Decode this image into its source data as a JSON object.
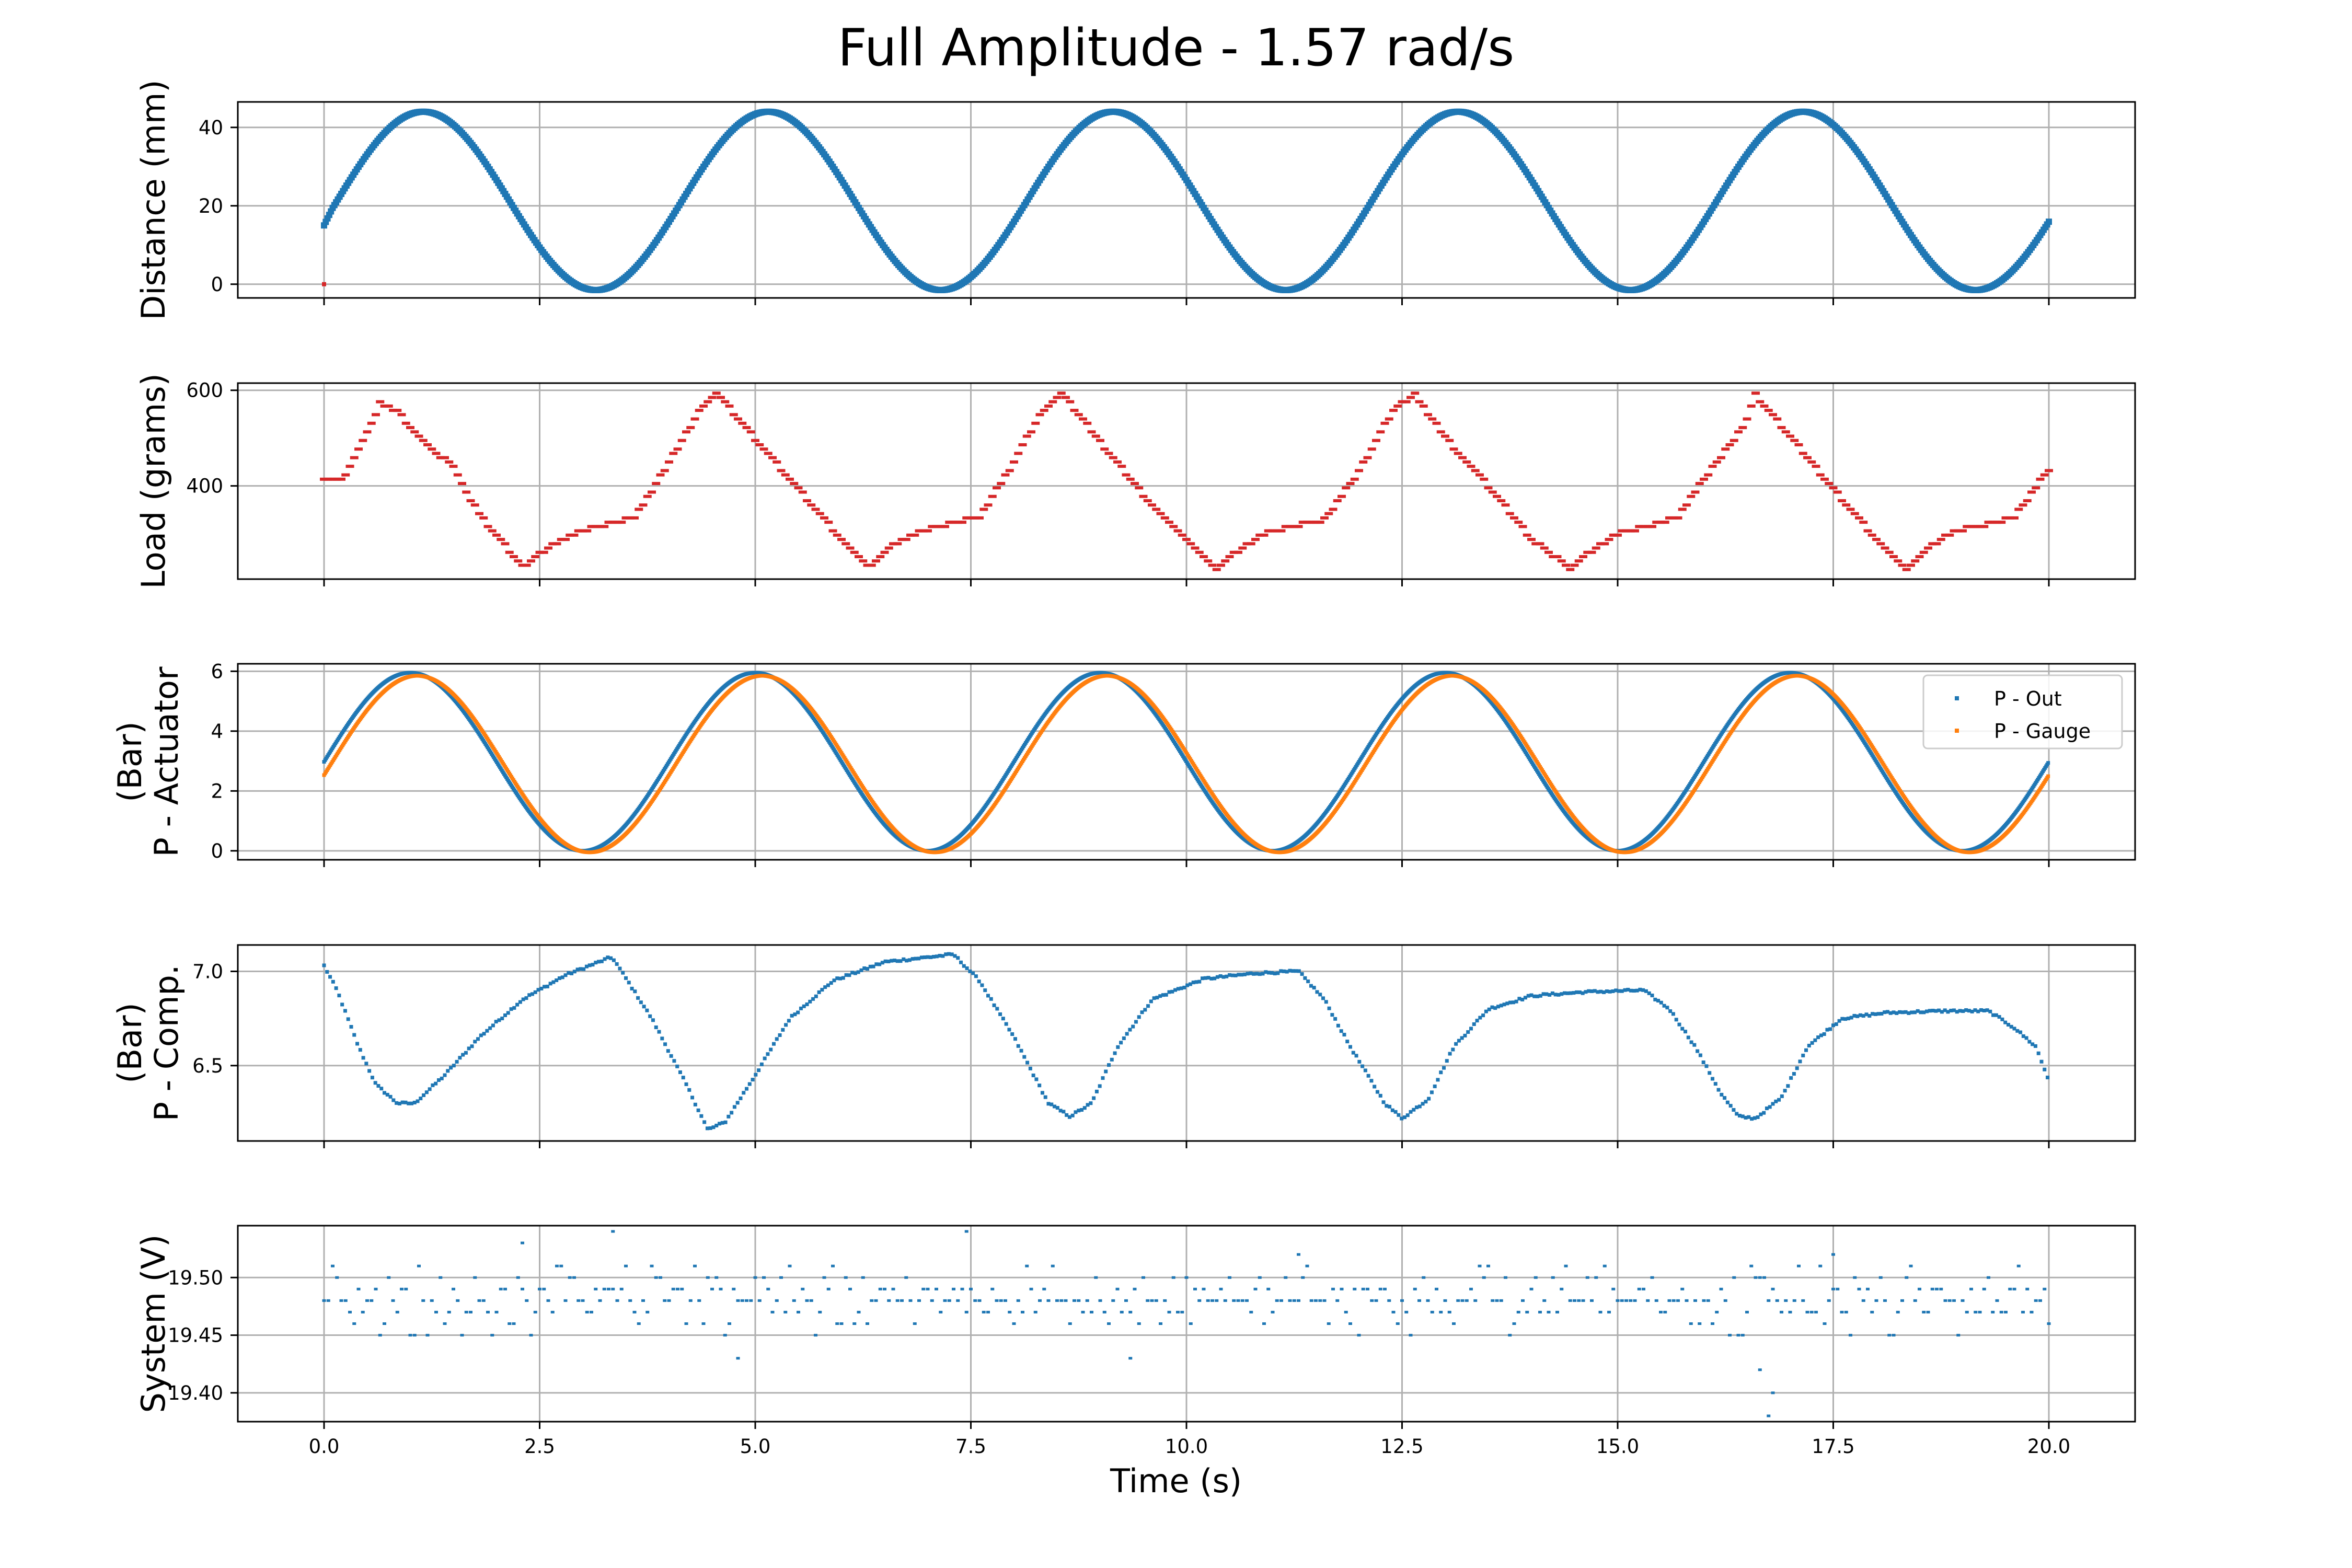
{
  "figure": {
    "title": "Full Amplitude - 1.57 rad/s",
    "xlabel": "Time (s)"
  },
  "chart_data": [
    {
      "type": "scatter",
      "ylabel": [
        "Distance (mm)"
      ],
      "xlim": [
        -1.0,
        21.0
      ],
      "ylim": [
        -3.5,
        46.5
      ],
      "yticks": [
        0,
        20,
        40
      ],
      "yticklabels": [
        "0",
        "20",
        "40"
      ],
      "grid": true,
      "generator": "distance",
      "series": [
        {
          "color": "#1f77b4",
          "t0": 0.0,
          "t1": 20.0,
          "step": 0.02
        },
        {
          "color": "#d62728",
          "points": [
            [
              0.0,
              0.0
            ]
          ]
        }
      ],
      "keypoints": {
        "start": [
          0.0,
          15.0
        ],
        "peaks_mm": 44,
        "troughs_mm": -1.5,
        "peak_times": [
          1.15,
          5.15,
          9.15,
          13.15,
          17.15
        ],
        "trough_times": [
          3.2,
          7.2,
          11.2,
          15.2,
          19.2
        ],
        "end": [
          20.0,
          13.0
        ]
      }
    },
    {
      "type": "scatter",
      "ylabel": [
        "Load (grams)"
      ],
      "xlim": [
        -1.0,
        21.0
      ],
      "ylim": [
        205,
        615
      ],
      "yticks": [
        400,
        600
      ],
      "yticklabels": [
        "400",
        "600"
      ],
      "grid": true,
      "generator": "load",
      "series": [
        {
          "color": "#d62728",
          "anchors": [
            [
              0.0,
              412
            ],
            [
              0.25,
              420
            ],
            [
              0.5,
              510
            ],
            [
              0.65,
              575
            ],
            [
              0.85,
              555
            ],
            [
              1.2,
              485
            ],
            [
              1.5,
              440
            ],
            [
              1.8,
              340
            ],
            [
              2.3,
              232
            ],
            [
              2.6,
              270
            ],
            [
              2.9,
              300
            ],
            [
              3.3,
              322
            ],
            [
              3.6,
              332
            ],
            [
              4.0,
              450
            ],
            [
              4.4,
              570
            ],
            [
              4.55,
              595
            ],
            [
              4.9,
              520
            ],
            [
              5.4,
              415
            ],
            [
              5.9,
              310
            ],
            [
              6.3,
              230
            ],
            [
              6.6,
              275
            ],
            [
              6.9,
              305
            ],
            [
              7.3,
              323
            ],
            [
              7.6,
              335
            ],
            [
              7.9,
              420
            ],
            [
              8.3,
              550
            ],
            [
              8.55,
              595
            ],
            [
              9.1,
              470
            ],
            [
              9.6,
              360
            ],
            [
              10.0,
              285
            ],
            [
              10.35,
              228
            ],
            [
              10.6,
              265
            ],
            [
              10.9,
              300
            ],
            [
              11.3,
              318
            ],
            [
              11.6,
              330
            ],
            [
              12.0,
              430
            ],
            [
              12.4,
              560
            ],
            [
              12.65,
              590
            ],
            [
              13.1,
              480
            ],
            [
              13.6,
              380
            ],
            [
              14.0,
              290
            ],
            [
              14.45,
              228
            ],
            [
              14.7,
              265
            ],
            [
              15.0,
              300
            ],
            [
              15.4,
              318
            ],
            [
              15.7,
              335
            ],
            [
              16.1,
              440
            ],
            [
              16.45,
              520
            ],
            [
              16.6,
              590
            ],
            [
              17.2,
              460
            ],
            [
              17.7,
              350
            ],
            [
              18.0,
              290
            ],
            [
              18.35,
              225
            ],
            [
              18.6,
              270
            ],
            [
              18.9,
              305
            ],
            [
              19.3,
              320
            ],
            [
              19.6,
              335
            ],
            [
              20.0,
              435
            ]
          ]
        }
      ]
    },
    {
      "type": "scatter",
      "ylabel": [
        "P - Actuator",
        "(Bar)"
      ],
      "xlim": [
        -1.0,
        21.0
      ],
      "ylim": [
        -0.3,
        6.25
      ],
      "yticks": [
        0,
        2,
        4,
        6
      ],
      "yticklabels": [
        "0",
        "2",
        "4",
        "6"
      ],
      "grid": true,
      "generator": "actuator",
      "legend": {
        "position": "upper right",
        "entries": [
          "P - Out",
          "P - Gauge"
        ]
      },
      "series": [
        {
          "name": "P - Out",
          "color": "#1f77b4",
          "min": 0.0,
          "max": 5.95,
          "start": 3.0,
          "end": 2.9
        },
        {
          "name": "P - Gauge",
          "color": "#ff7f0e",
          "min": -0.05,
          "max": 5.85,
          "start": 2.85,
          "end": 2.85
        }
      ]
    },
    {
      "type": "scatter",
      "ylabel": [
        "P - Comp.",
        "(Bar)"
      ],
      "xlim": [
        -1.0,
        21.0
      ],
      "ylim": [
        6.1,
        7.14
      ],
      "yticks": [
        6.5,
        7.0
      ],
      "yticklabels": [
        "6.5",
        "7.0"
      ],
      "grid": true,
      "generator": "piecewise",
      "series": [
        {
          "color": "#1f77b4",
          "anchors": [
            [
              0.0,
              7.03
            ],
            [
              0.15,
              6.9
            ],
            [
              0.4,
              6.6
            ],
            [
              0.6,
              6.4
            ],
            [
              0.85,
              6.3
            ],
            [
              1.05,
              6.3
            ],
            [
              1.4,
              6.45
            ],
            [
              1.8,
              6.65
            ],
            [
              2.3,
              6.85
            ],
            [
              2.8,
              6.98
            ],
            [
              3.3,
              7.07
            ],
            [
              3.35,
              7.07
            ],
            [
              3.8,
              6.75
            ],
            [
              4.2,
              6.4
            ],
            [
              4.45,
              6.16
            ],
            [
              4.65,
              6.2
            ],
            [
              5.0,
              6.45
            ],
            [
              5.4,
              6.75
            ],
            [
              5.9,
              6.95
            ],
            [
              6.5,
              7.05
            ],
            [
              7.3,
              7.09
            ],
            [
              7.6,
              6.95
            ],
            [
              8.0,
              6.65
            ],
            [
              8.4,
              6.3
            ],
            [
              8.65,
              6.23
            ],
            [
              8.9,
              6.3
            ],
            [
              9.2,
              6.6
            ],
            [
              9.6,
              6.85
            ],
            [
              10.2,
              6.96
            ],
            [
              10.8,
              6.99
            ],
            [
              11.3,
              7.0
            ],
            [
              11.6,
              6.85
            ],
            [
              11.9,
              6.6
            ],
            [
              12.3,
              6.3
            ],
            [
              12.5,
              6.22
            ],
            [
              12.8,
              6.32
            ],
            [
              13.1,
              6.6
            ],
            [
              13.5,
              6.8
            ],
            [
              14.0,
              6.87
            ],
            [
              14.6,
              6.89
            ],
            [
              15.3,
              6.9
            ],
            [
              15.6,
              6.8
            ],
            [
              15.9,
              6.6
            ],
            [
              16.2,
              6.35
            ],
            [
              16.4,
              6.23
            ],
            [
              16.6,
              6.22
            ],
            [
              16.9,
              6.33
            ],
            [
              17.2,
              6.6
            ],
            [
              17.6,
              6.75
            ],
            [
              18.1,
              6.78
            ],
            [
              18.8,
              6.79
            ],
            [
              19.3,
              6.79
            ],
            [
              19.6,
              6.7
            ],
            [
              19.85,
              6.6
            ],
            [
              20.0,
              6.42
            ]
          ]
        }
      ]
    },
    {
      "type": "scatter",
      "ylabel": [
        "System (V)"
      ],
      "xlim": [
        -1.0,
        21.0
      ],
      "ylim": [
        19.375,
        19.545
      ],
      "yticks": [
        19.4,
        19.45,
        19.5
      ],
      "yticklabels": [
        "19.40",
        "19.45",
        "19.50"
      ],
      "grid": true,
      "generator": "noise",
      "series": [
        {
          "color": "#1f77b4",
          "mean": 19.48,
          "levels": [
            19.38,
            19.39,
            19.4,
            19.41,
            19.42,
            19.43,
            19.44,
            19.45,
            19.46,
            19.47,
            19.48,
            19.49,
            19.5,
            19.51,
            19.52,
            19.53,
            19.54
          ],
          "outliers": [
            [
              16.75,
              19.38
            ],
            [
              16.8,
              19.4
            ],
            [
              16.65,
              19.42
            ],
            [
              4.8,
              19.43
            ],
            [
              9.35,
              19.43
            ],
            [
              3.35,
              19.54
            ],
            [
              7.45,
              19.54
            ],
            [
              2.3,
              19.53
            ],
            [
              11.3,
              19.52
            ],
            [
              17.5,
              19.52
            ]
          ]
        }
      ]
    }
  ],
  "xaxis": {
    "ticks": [
      0.0,
      2.5,
      5.0,
      7.5,
      10.0,
      12.5,
      15.0,
      17.5,
      20.0
    ],
    "ticklabels": [
      "0.0",
      "2.5",
      "5.0",
      "7.5",
      "10.0",
      "12.5",
      "15.0",
      "17.5",
      "20.0"
    ]
  }
}
